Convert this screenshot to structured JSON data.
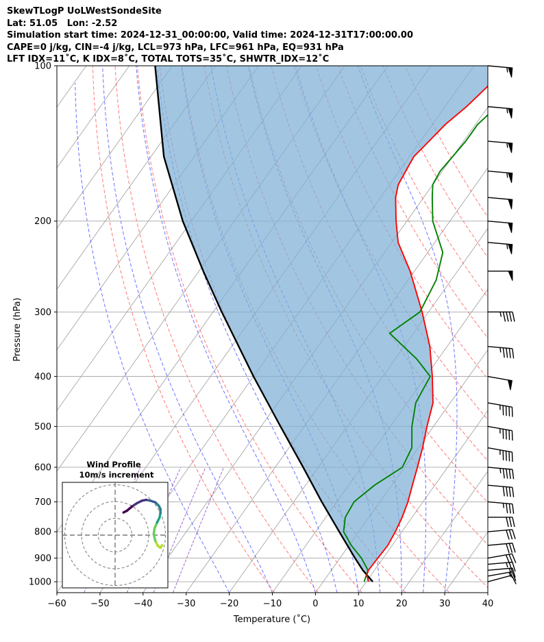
{
  "header": {
    "line1": "SkewTLogP UoLWestSondeSite",
    "line2": "Lat: 51.05   Lon: -2.52",
    "line3": "Simulation start time: 2024-12-31_00:00:00, Valid time: 2024-12-31T17:00:00.00",
    "line4": "CAPE=0 j/kg, CIN=-4 j/kg, LCL=973 hPa, LFC=961 hPa, EQ=931 hPa",
    "line5": "LFT IDX=11˚C, K IDX=8˚C, TOTAL TOTS=35˚C, SHWTR_IDX=12˚C"
  },
  "chart_data": [
    {
      "type": "line",
      "subtype": "skew-t log-p",
      "xlabel": "Temperature (˚C)",
      "ylabel": "Pressure (hPa)",
      "xlim": [
        -60,
        40
      ],
      "ylim": [
        1050,
        100
      ],
      "y_scale": "log",
      "x_ticks": [
        "−60",
        "−50",
        "−40",
        "−30",
        "−20",
        "−10",
        "0",
        "10",
        "20",
        "30",
        "40"
      ],
      "y_ticks": [
        1000,
        900,
        800,
        700,
        600,
        500,
        400,
        300,
        200,
        100
      ],
      "grid": true,
      "isotherm_step_c": 10,
      "dry_adiabat_thetas_k": [
        260,
        270,
        280,
        290,
        300,
        310,
        320,
        330,
        340,
        350,
        360,
        370,
        380,
        390,
        400
      ],
      "moist_adiabat_start_c": [
        -20,
        -10,
        0,
        5,
        10,
        15,
        20,
        25,
        30
      ],
      "mixing_ratio_gkg": [
        4,
        8,
        12,
        16
      ],
      "colors": {
        "temperature": "#ff0000",
        "dewpoint": "#008000",
        "parcel": "#000000",
        "cape_fill": "#7eb0d5",
        "isotherms": "#a6a6a6",
        "dry_adiabats": "#ff6060",
        "moist_adiabats": "#4f5bff",
        "mixing_ratio": "#8a3fbf"
      },
      "series": [
        {
          "key": "temperature",
          "p": [
            1000,
            970,
            950,
            900,
            850,
            800,
            750,
            700,
            650,
            600,
            550,
            500,
            450,
            400,
            350,
            300,
            250,
            220,
            200,
            180,
            170,
            160,
            150,
            140,
            130,
            120,
            110,
            100
          ],
          "t": [
            10.5,
            9.0,
            8.6,
            8.8,
            9.0,
            8.5,
            7.7,
            6.5,
            4.8,
            3.0,
            1.0,
            -1.5,
            -4.0,
            -8.5,
            -14.0,
            -21.5,
            -31.0,
            -38.5,
            -42.5,
            -46.5,
            -48.0,
            -48.5,
            -49.0,
            -48.0,
            -47.0,
            -45.0,
            -43.5,
            -42.0
          ]
        },
        {
          "key": "dewpoint",
          "p": [
            1000,
            950,
            900,
            850,
            800,
            750,
            700,
            650,
            600,
            550,
            500,
            450,
            400,
            370,
            330,
            300,
            260,
            230,
            200,
            180,
            170,
            160,
            150,
            140,
            130,
            120,
            100
          ],
          "td": [
            9.5,
            8.5,
            5.0,
            0.5,
            -3.5,
            -5.5,
            -6.0,
            -4.0,
            -0.5,
            -1.5,
            -5.0,
            -8.0,
            -9.0,
            -15.0,
            -25.5,
            -22.0,
            -23.5,
            -26.5,
            -34.0,
            -38.0,
            -40.0,
            -40.5,
            -40.0,
            -39.5,
            -39.5,
            -38.0,
            -36.0
          ]
        },
        {
          "key": "parcel",
          "p": [
            1000,
            970,
            950,
            900,
            850,
            800,
            700,
            600,
            500,
            400,
            300,
            250,
            200,
            150,
            100
          ],
          "t": [
            11.5,
            9.0,
            7.3,
            3.5,
            -0.4,
            -4.5,
            -13.5,
            -23.5,
            -35.5,
            -50.0,
            -68.0,
            -79.0,
            -92.0,
            -107.0,
            -124.0
          ]
        }
      ],
      "wind_barbs": {
        "pressures": [
          1000,
          975,
          950,
          925,
          900,
          850,
          800,
          750,
          700,
          650,
          600,
          550,
          500,
          450,
          400,
          350,
          300,
          250,
          220,
          200,
          180,
          160,
          140,
          120,
          100
        ],
        "speed_kt": [
          10,
          15,
          20,
          25,
          30,
          30,
          30,
          30,
          35,
          40,
          45,
          45,
          45,
          45,
          50,
          45,
          45,
          50,
          55,
          50,
          50,
          55,
          55,
          55,
          55
        ],
        "direction_deg": [
          255,
          260,
          265,
          265,
          260,
          265,
          265,
          270,
          275,
          275,
          275,
          280,
          280,
          280,
          280,
          275,
          270,
          270,
          275,
          275,
          275,
          275,
          275,
          275,
          275
        ]
      }
    },
    {
      "type": "scatter",
      "subtype": "hodograph",
      "title": "Wind Profile",
      "subtitle": "10m/s increment",
      "ring_step_ms": 10,
      "rings": 3,
      "u_ms": [
        28.0,
        27.0,
        25.5,
        24.0,
        23.0,
        23.5,
        25.0,
        26.5,
        27.0,
        27.0,
        26.0,
        24.0,
        21.0,
        18.5,
        16.0,
        13.0,
        10.0,
        7.0,
        5.0
      ],
      "v_ms": [
        -6.0,
        -7.5,
        -6.5,
        -3.5,
        0.5,
        4.0,
        7.5,
        10.5,
        13.0,
        15.5,
        17.5,
        19.5,
        20.5,
        21.0,
        20.5,
        19.0,
        17.0,
        14.5,
        13.5
      ],
      "colormap": "viridis (surface → top)",
      "colormap_stops": [
        "#b5de2b",
        "#6ccd5a",
        "#1fa187",
        "#277f8e",
        "#365c8d",
        "#46337e",
        "#440154"
      ]
    }
  ]
}
